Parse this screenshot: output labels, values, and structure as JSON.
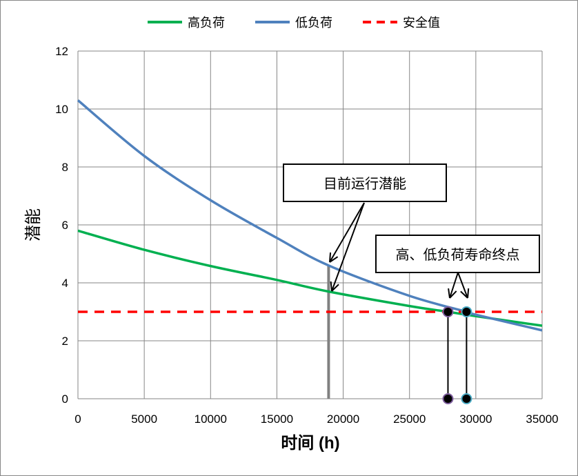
{
  "chart_data": {
    "type": "line",
    "xlabel": "时间 (h)",
    "ylabel": "潜能",
    "xlim": [
      0,
      35000
    ],
    "ylim": [
      0,
      12
    ],
    "xticks": [
      0,
      5000,
      10000,
      15000,
      20000,
      25000,
      30000,
      35000
    ],
    "yticks": [
      0,
      2,
      4,
      6,
      8,
      10,
      12
    ],
    "grid": true,
    "legend_position": "top",
    "series": [
      {
        "name": "高负荷",
        "color": "#00b050",
        "dash": false,
        "x": [
          0,
          5000,
          10000,
          15000,
          18900,
          25000,
          27900,
          30000,
          35000
        ],
        "y": [
          5.8,
          5.14,
          4.58,
          4.1,
          3.7,
          3.2,
          3.0,
          2.85,
          2.52
        ]
      },
      {
        "name": "低负荷",
        "color": "#4f81bd",
        "dash": false,
        "x": [
          0,
          5000,
          10000,
          15000,
          18900,
          25000,
          29300,
          30000,
          35000
        ],
        "y": [
          10.3,
          8.38,
          6.85,
          5.55,
          4.6,
          3.55,
          3.0,
          2.9,
          2.36
        ]
      },
      {
        "name": "安全值",
        "color": "#ff0000",
        "dash": true,
        "x": [
          0,
          35000
        ],
        "y": [
          3,
          3
        ]
      }
    ],
    "current_time_marker": {
      "x": 18900,
      "color": "#808080"
    },
    "end_points": [
      {
        "x": 27900,
        "y": 3,
        "ring": "#7f5f9f"
      },
      {
        "x": 29300,
        "y": 3,
        "ring": "#4bacc6"
      }
    ],
    "annotations": [
      {
        "text": "目前运行潜能"
      },
      {
        "text": "高、低负荷寿命终点"
      }
    ]
  }
}
